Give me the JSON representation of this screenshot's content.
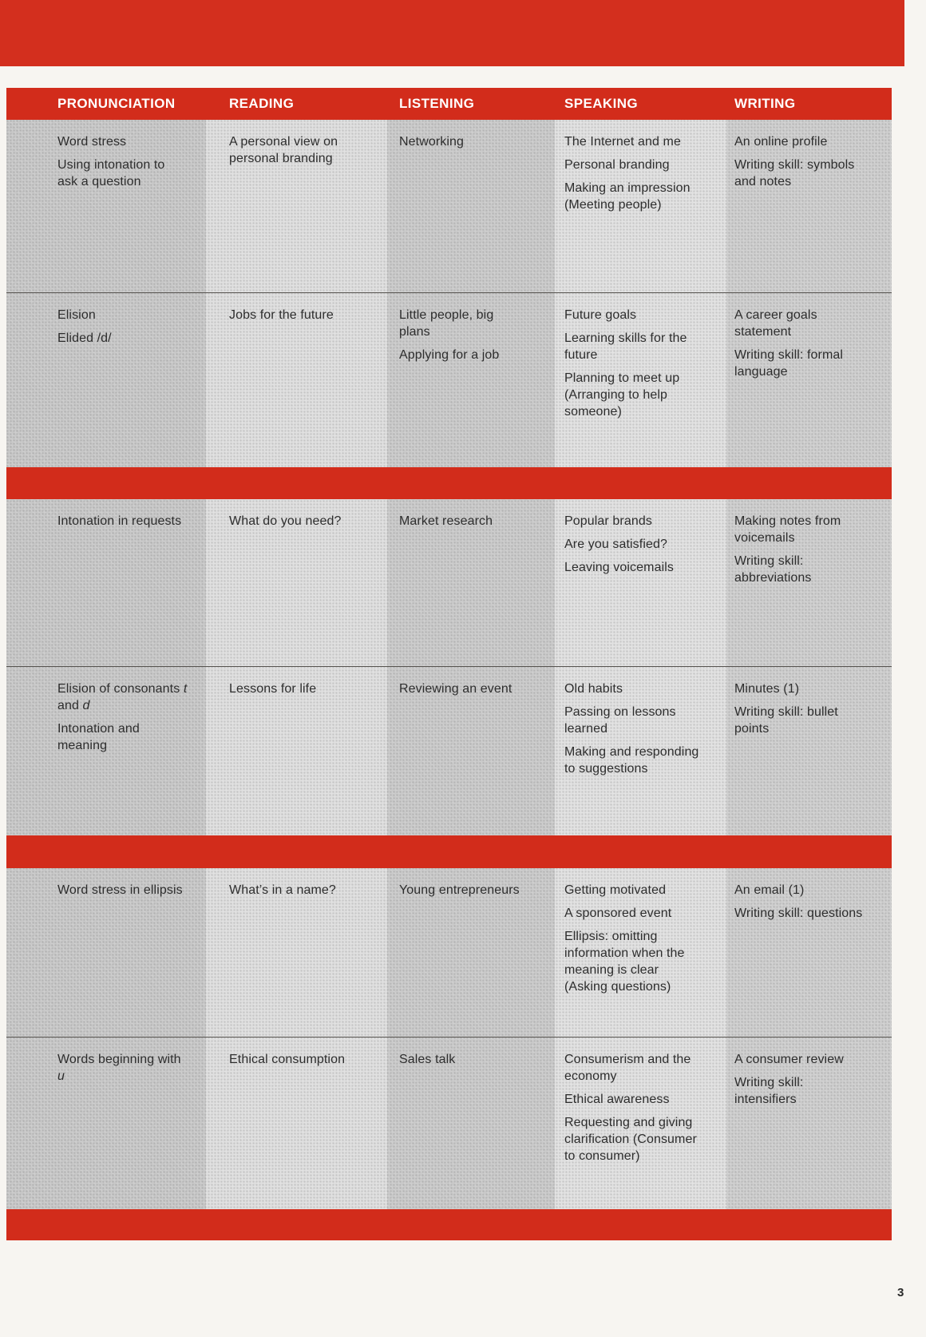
{
  "colors": {
    "band_red": "#d22c1b",
    "top_band_red": "#d32f1e",
    "page_bg": "#f7f5f1",
    "stripe_dark": "#c8c8c8",
    "stripe_light": "#dfdfdf",
    "text": "#2d2d2d"
  },
  "page": {
    "number": "3"
  },
  "table": {
    "headers": [
      "PRONUNCIATION",
      "READING",
      "LISTENING",
      "SPEAKING",
      "WRITING"
    ],
    "rows": [
      {
        "pronunciation": [
          "Word stress",
          "Using intonation to ask a question"
        ],
        "reading": [
          "A personal view on personal branding"
        ],
        "listening": [
          "Networking"
        ],
        "speaking": [
          "The Internet and me",
          "Personal branding",
          "Making an impression (Meeting people)"
        ],
        "writing": [
          "An online profile",
          "Writing skill: symbols and notes"
        ]
      },
      {
        "pronunciation": [
          "Elision",
          "Elided /d/"
        ],
        "reading": [
          "Jobs for the future"
        ],
        "listening": [
          "Little people, big plans",
          "Applying for a job"
        ],
        "speaking": [
          "Future goals",
          "Learning skills for the future",
          "Planning to meet up (Arranging to help someone)"
        ],
        "writing": [
          "A career goals statement",
          "Writing skill: formal language"
        ]
      },
      {
        "pronunciation": [
          "Intonation in requests"
        ],
        "reading": [
          "What do you need?"
        ],
        "listening": [
          "Market research"
        ],
        "speaking": [
          "Popular brands",
          "Are you satisfied?",
          "Leaving voicemails"
        ],
        "writing": [
          "Making notes from voicemails",
          "Writing skill: abbreviations"
        ]
      },
      {
        "pronunciation": [
          [
            {
              "t": "Elision of consonants "
            },
            {
              "t": "t",
              "i": true
            },
            {
              "t": " and "
            },
            {
              "t": "d",
              "i": true
            }
          ],
          "Intonation and meaning"
        ],
        "reading": [
          "Lessons for life"
        ],
        "listening": [
          "Reviewing an event"
        ],
        "speaking": [
          "Old habits",
          "Passing on lessons learned",
          "Making and responding to suggestions"
        ],
        "writing": [
          "Minutes (1)",
          "Writing skill: bullet points"
        ]
      },
      {
        "pronunciation": [
          "Word stress in ellipsis"
        ],
        "reading": [
          "What’s in a name?"
        ],
        "listening": [
          "Young entrepreneurs"
        ],
        "speaking": [
          "Getting motivated",
          "A sponsored event",
          "Ellipsis: omitting information when the meaning is clear (Asking questions)"
        ],
        "writing": [
          "An email (1)",
          "Writing skill: questions"
        ]
      },
      {
        "pronunciation": [
          [
            {
              "t": "Words beginning with "
            },
            {
              "t": "u",
              "i": true
            }
          ]
        ],
        "reading": [
          "Ethical consumption"
        ],
        "listening": [
          "Sales talk"
        ],
        "speaking": [
          "Consumerism and the economy",
          "Ethical awareness",
          "Requesting and giving clarification (Consumer to consumer)"
        ],
        "writing": [
          "A consumer review",
          "Writing skill: intensifiers"
        ]
      }
    ]
  }
}
